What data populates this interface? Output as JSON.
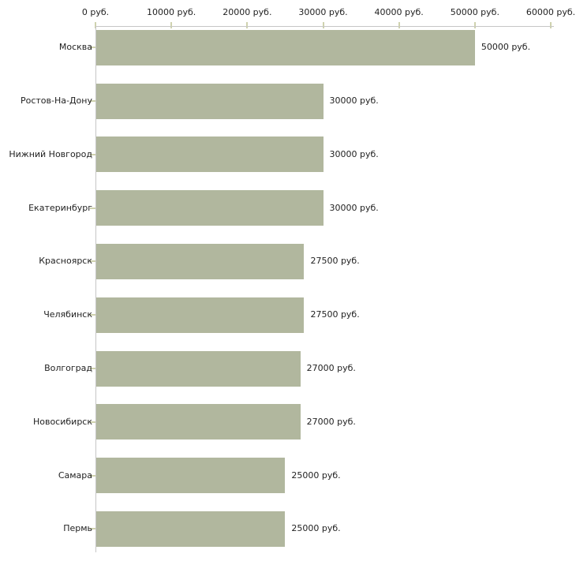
{
  "chart_data": {
    "type": "bar",
    "orientation": "horizontal",
    "title": "",
    "xlabel": "",
    "ylabel": "",
    "unit": "руб.",
    "xlim": [
      0,
      60000
    ],
    "grid": false,
    "legend": null,
    "categories": [
      "Москва",
      "Ростов-На-Дону",
      "Нижний Новгород",
      "Екатеринбург",
      "Красноярск",
      "Челябинск",
      "Волгоград",
      "Новосибирск",
      "Самара",
      "Пермь"
    ],
    "values": [
      50000,
      30000,
      30000,
      30000,
      27500,
      27500,
      27000,
      27000,
      25000,
      25000
    ],
    "value_labels": [
      "50000 руб.",
      "30000 руб.",
      "30000 руб.",
      "30000 руб.",
      "27500 руб.",
      "27500 руб.",
      "27000 руб.",
      "27000 руб.",
      "25000 руб.",
      "25000 руб."
    ],
    "x_tick_values": [
      0,
      10000,
      20000,
      30000,
      40000,
      50000,
      60000
    ],
    "x_tick_labels": [
      "0 руб.",
      "10000 руб.",
      "20000 руб.",
      "30000 руб.",
      "40000 руб.",
      "50000 руб.",
      "60000 руб."
    ],
    "colors": {
      "bar": "#b1b79e",
      "tick_mark": "#cfd2ae",
      "axis_line": "#c6c6c6",
      "label_text": "#1f1f1f",
      "background": "#ffffff"
    }
  }
}
